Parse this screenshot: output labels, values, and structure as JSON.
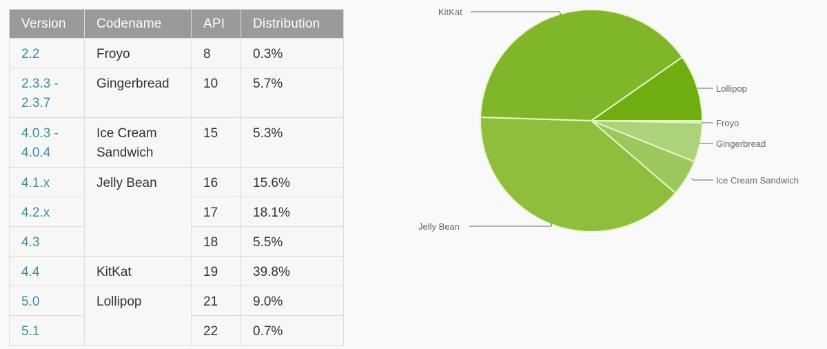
{
  "table": {
    "headers": [
      "Version",
      "Codename",
      "API",
      "Distribution"
    ],
    "rows": [
      {
        "version": "2.2",
        "codename": "Froyo",
        "api": "8",
        "distribution": "0.3%"
      },
      {
        "version": "2.3.3 -\n2.3.7",
        "codename": "Gingerbread",
        "api": "10",
        "distribution": "5.7%"
      },
      {
        "version": "4.0.3 -\n4.0.4",
        "codename": "Ice Cream\nSandwich",
        "api": "15",
        "distribution": "5.3%"
      },
      {
        "version": "4.1.x",
        "codename": "Jelly Bean",
        "api": "16",
        "distribution": "15.6%"
      },
      {
        "version": "4.2.x",
        "codename": "",
        "api": "17",
        "distribution": "18.1%"
      },
      {
        "version": "4.3",
        "codename": "",
        "api": "18",
        "distribution": "5.5%"
      },
      {
        "version": "4.4",
        "codename": "KitKat",
        "api": "19",
        "distribution": "39.8%"
      },
      {
        "version": "5.0",
        "codename": "Lollipop",
        "api": "21",
        "distribution": "9.0%"
      },
      {
        "version": "5.1",
        "codename": "",
        "api": "22",
        "distribution": "0.7%"
      }
    ]
  },
  "chart_data": {
    "type": "pie",
    "title": "",
    "categories": [
      "Froyo",
      "Gingerbread",
      "Ice Cream Sandwich",
      "Jelly Bean",
      "KitKat",
      "Lollipop"
    ],
    "values": [
      0.3,
      5.7,
      5.3,
      39.2,
      39.8,
      9.7
    ],
    "colors": [
      "#c5e29a",
      "#acd37a",
      "#9bc75c",
      "#8fbd3c",
      "#80b72a",
      "#6eaf0f"
    ],
    "legend_position": "callout labels",
    "labels": {
      "kitkat": "KitKat",
      "lollipop": "Lollipop",
      "froyo": "Froyo",
      "gingerbread": "Gingerbread",
      "ics": "Ice Cream Sandwich",
      "jellybean": "Jelly Bean"
    }
  }
}
